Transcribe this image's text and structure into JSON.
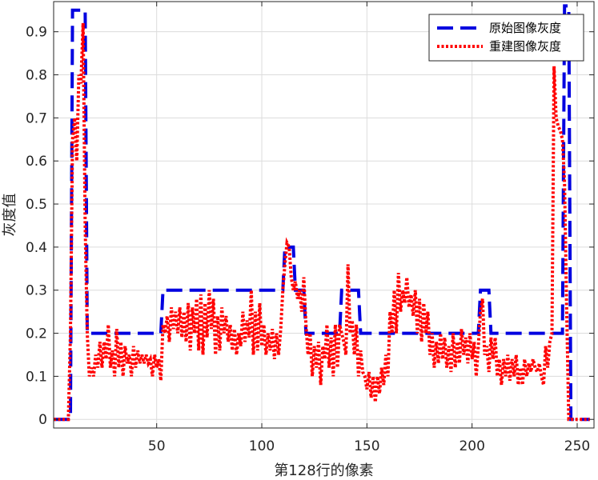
{
  "chart_data": {
    "type": "line",
    "xlabel": "第128行的像素",
    "ylabel": "灰度值",
    "xlim": [
      1,
      258
    ],
    "ylim": [
      -0.02,
      0.97
    ],
    "xticks": [
      50,
      100,
      150,
      200,
      250
    ],
    "yticks": [
      0,
      0.1,
      0.2,
      0.3,
      0.4,
      0.5,
      0.6,
      0.7,
      0.8,
      0.9
    ],
    "grid": true,
    "legend_position": "top-right",
    "series": [
      {
        "name": "原始图像灰度",
        "color": "#0000e0",
        "style": "dashed",
        "points": [
          [
            1,
            0
          ],
          [
            9,
            0
          ],
          [
            10,
            0.95
          ],
          [
            16,
            0.95
          ],
          [
            17,
            0.2
          ],
          [
            52,
            0.2
          ],
          [
            53,
            0.3
          ],
          [
            110,
            0.3
          ],
          [
            111,
            0.4
          ],
          [
            115,
            0.4
          ],
          [
            116,
            0.3
          ],
          [
            120,
            0.3
          ],
          [
            121,
            0.2
          ],
          [
            137,
            0.2
          ],
          [
            138,
            0.3
          ],
          [
            146,
            0.3
          ],
          [
            147,
            0.2
          ],
          [
            203,
            0.2
          ],
          [
            204,
            0.3
          ],
          [
            208,
            0.3
          ],
          [
            209,
            0.2
          ],
          [
            243,
            0.2
          ],
          [
            244,
            0.96
          ],
          [
            246,
            0.96
          ],
          [
            247,
            0
          ],
          [
            256,
            0
          ]
        ]
      },
      {
        "name": "重建图像灰度",
        "color": "#ff0000",
        "style": "dotted",
        "points": [
          [
            1,
            0
          ],
          [
            8,
            0
          ],
          [
            9,
            0.2
          ],
          [
            10,
            0.65
          ],
          [
            11,
            0.7
          ],
          [
            12,
            0.6
          ],
          [
            13,
            0.8
          ],
          [
            14,
            0.78
          ],
          [
            15,
            0.92
          ],
          [
            16,
            0.45
          ],
          [
            17,
            0.2
          ],
          [
            18,
            0.1
          ],
          [
            19,
            0.12
          ],
          [
            20,
            0.1
          ],
          [
            21,
            0.15
          ],
          [
            22,
            0.12
          ],
          [
            23,
            0.18
          ],
          [
            24,
            0.12
          ],
          [
            25,
            0.18
          ],
          [
            26,
            0.14
          ],
          [
            27,
            0.22
          ],
          [
            28,
            0.12
          ],
          [
            29,
            0.16
          ],
          [
            30,
            0.1
          ],
          [
            31,
            0.21
          ],
          [
            32,
            0.12
          ],
          [
            33,
            0.18
          ],
          [
            34,
            0.1
          ],
          [
            35,
            0.17
          ],
          [
            36,
            0.13
          ],
          [
            37,
            0.15
          ],
          [
            38,
            0.1
          ],
          [
            39,
            0.17
          ],
          [
            40,
            0.12
          ],
          [
            41,
            0.16
          ],
          [
            42,
            0.13
          ],
          [
            43,
            0.15
          ],
          [
            44,
            0.13
          ],
          [
            45,
            0.15
          ],
          [
            46,
            0.13
          ],
          [
            47,
            0.14
          ],
          [
            48,
            0.1
          ],
          [
            49,
            0.15
          ],
          [
            50,
            0.12
          ],
          [
            51,
            0.14
          ],
          [
            52,
            0.09
          ],
          [
            53,
            0.22
          ],
          [
            54,
            0.2
          ],
          [
            55,
            0.24
          ],
          [
            56,
            0.18
          ],
          [
            57,
            0.26
          ],
          [
            58,
            0.21
          ],
          [
            59,
            0.25
          ],
          [
            60,
            0.2
          ],
          [
            61,
            0.26
          ],
          [
            62,
            0.19
          ],
          [
            63,
            0.25
          ],
          [
            64,
            0.18
          ],
          [
            65,
            0.27
          ],
          [
            66,
            0.16
          ],
          [
            67,
            0.26
          ],
          [
            68,
            0.2
          ],
          [
            69,
            0.28
          ],
          [
            70,
            0.16
          ],
          [
            71,
            0.29
          ],
          [
            72,
            0.15
          ],
          [
            73,
            0.27
          ],
          [
            74,
            0.19
          ],
          [
            75,
            0.3
          ],
          [
            76,
            0.21
          ],
          [
            77,
            0.28
          ],
          [
            78,
            0.15
          ],
          [
            79,
            0.24
          ],
          [
            80,
            0.16
          ],
          [
            81,
            0.26
          ],
          [
            82,
            0.2
          ],
          [
            83,
            0.24
          ],
          [
            84,
            0.18
          ],
          [
            85,
            0.22
          ],
          [
            86,
            0.16
          ],
          [
            87,
            0.21
          ],
          [
            88,
            0.15
          ],
          [
            89,
            0.2
          ],
          [
            90,
            0.17
          ],
          [
            91,
            0.25
          ],
          [
            92,
            0.18
          ],
          [
            93,
            0.23
          ],
          [
            94,
            0.19
          ],
          [
            95,
            0.3
          ],
          [
            96,
            0.15
          ],
          [
            97,
            0.25
          ],
          [
            98,
            0.16
          ],
          [
            99,
            0.27
          ],
          [
            100,
            0.17
          ],
          [
            101,
            0.22
          ],
          [
            102,
            0.15
          ],
          [
            103,
            0.2
          ],
          [
            104,
            0.16
          ],
          [
            105,
            0.21
          ],
          [
            106,
            0.14
          ],
          [
            107,
            0.2
          ],
          [
            108,
            0.15
          ],
          [
            109,
            0.21
          ],
          [
            110,
            0.3
          ],
          [
            111,
            0.36
          ],
          [
            112,
            0.41
          ],
          [
            113,
            0.4
          ],
          [
            114,
            0.33
          ],
          [
            115,
            0.3
          ],
          [
            116,
            0.32
          ],
          [
            117,
            0.28
          ],
          [
            118,
            0.3
          ],
          [
            119,
            0.25
          ],
          [
            120,
            0.33
          ],
          [
            121,
            0.22
          ],
          [
            122,
            0.15
          ],
          [
            123,
            0.2
          ],
          [
            124,
            0.1
          ],
          [
            125,
            0.17
          ],
          [
            126,
            0.12
          ],
          [
            127,
            0.18
          ],
          [
            128,
            0.08
          ],
          [
            129,
            0.17
          ],
          [
            130,
            0.14
          ],
          [
            131,
            0.22
          ],
          [
            132,
            0.12
          ],
          [
            133,
            0.19
          ],
          [
            134,
            0.1
          ],
          [
            135,
            0.22
          ],
          [
            136,
            0.12
          ],
          [
            137,
            0.22
          ],
          [
            138,
            0.2
          ],
          [
            139,
            0.18
          ],
          [
            140,
            0.15
          ],
          [
            141,
            0.36
          ],
          [
            142,
            0.2
          ],
          [
            143,
            0.23
          ],
          [
            144,
            0.15
          ],
          [
            145,
            0.22
          ],
          [
            146,
            0.1
          ],
          [
            147,
            0.16
          ],
          [
            148,
            0.11
          ],
          [
            149,
            0.1
          ],
          [
            150,
            0.07
          ],
          [
            151,
            0.11
          ],
          [
            152,
            0.05
          ],
          [
            153,
            0.1
          ],
          [
            154,
            0.04
          ],
          [
            155,
            0.1
          ],
          [
            156,
            0.06
          ],
          [
            157,
            0.12
          ],
          [
            158,
            0.08
          ],
          [
            159,
            0.15
          ],
          [
            160,
            0.1
          ],
          [
            161,
            0.25
          ],
          [
            162,
            0.2
          ],
          [
            163,
            0.3
          ],
          [
            164,
            0.2
          ],
          [
            165,
            0.34
          ],
          [
            166,
            0.25
          ],
          [
            167,
            0.3
          ],
          [
            168,
            0.27
          ],
          [
            169,
            0.33
          ],
          [
            170,
            0.26
          ],
          [
            171,
            0.29
          ],
          [
            172,
            0.24
          ],
          [
            173,
            0.3
          ],
          [
            174,
            0.2
          ],
          [
            175,
            0.28
          ],
          [
            176,
            0.18
          ],
          [
            177,
            0.27
          ],
          [
            178,
            0.2
          ],
          [
            179,
            0.25
          ],
          [
            180,
            0.15
          ],
          [
            181,
            0.2
          ],
          [
            182,
            0.12
          ],
          [
            183,
            0.18
          ],
          [
            184,
            0.13
          ],
          [
            185,
            0.2
          ],
          [
            186,
            0.14
          ],
          [
            187,
            0.19
          ],
          [
            188,
            0.12
          ],
          [
            189,
            0.17
          ],
          [
            190,
            0.11
          ],
          [
            191,
            0.2
          ],
          [
            192,
            0.12
          ],
          [
            193,
            0.18
          ],
          [
            194,
            0.13
          ],
          [
            195,
            0.21
          ],
          [
            196,
            0.15
          ],
          [
            197,
            0.19
          ],
          [
            198,
            0.13
          ],
          [
            199,
            0.2
          ],
          [
            200,
            0.14
          ],
          [
            201,
            0.18
          ],
          [
            202,
            0.1
          ],
          [
            203,
            0.17
          ],
          [
            204,
            0.25
          ],
          [
            205,
            0.28
          ],
          [
            206,
            0.15
          ],
          [
            207,
            0.17
          ],
          [
            208,
            0.11
          ],
          [
            209,
            0.19
          ],
          [
            210,
            0.14
          ],
          [
            211,
            0.19
          ],
          [
            212,
            0.1
          ],
          [
            213,
            0.14
          ],
          [
            214,
            0.08
          ],
          [
            215,
            0.14
          ],
          [
            216,
            0.1
          ],
          [
            217,
            0.15
          ],
          [
            218,
            0.09
          ],
          [
            219,
            0.14
          ],
          [
            220,
            0.1
          ],
          [
            221,
            0.15
          ],
          [
            222,
            0.08
          ],
          [
            223,
            0.12
          ],
          [
            224,
            0.08
          ],
          [
            225,
            0.14
          ],
          [
            226,
            0.1
          ],
          [
            227,
            0.13
          ],
          [
            228,
            0.11
          ],
          [
            229,
            0.14
          ],
          [
            230,
            0.12
          ],
          [
            231,
            0.11
          ],
          [
            232,
            0.13
          ],
          [
            233,
            0.1
          ],
          [
            234,
            0.08
          ],
          [
            235,
            0.17
          ],
          [
            236,
            0.12
          ],
          [
            237,
            0.18
          ],
          [
            238,
            0.2
          ],
          [
            239,
            0.82
          ],
          [
            240,
            0.7
          ],
          [
            241,
            0.68
          ],
          [
            242,
            0.67
          ],
          [
            243,
            0.65
          ],
          [
            244,
            0.55
          ],
          [
            245,
            0.25
          ],
          [
            246,
            0
          ],
          [
            256,
            0
          ]
        ]
      }
    ]
  }
}
